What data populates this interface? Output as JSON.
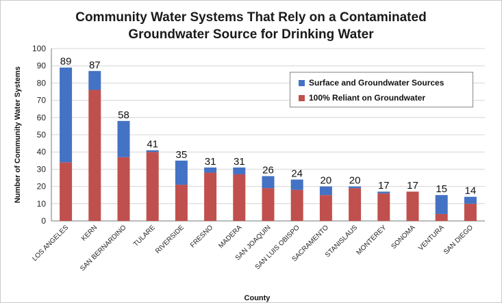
{
  "chart_data": {
    "type": "bar",
    "stacked": true,
    "title": "Community Water Systems That Rely on a Contaminated Groundwater Source for Drinking Water",
    "title_lines": [
      "Community Water Systems That Rely on a Contaminated",
      "Groundwater Source for Drinking Water"
    ],
    "xlabel": "County",
    "ylabel": "Number of Community Water Systems",
    "ylim": [
      0,
      100
    ],
    "yticks": [
      0,
      10,
      20,
      30,
      40,
      50,
      60,
      70,
      80,
      90,
      100
    ],
    "grid": true,
    "legend_position": "top-right",
    "categories": [
      "LOS ANGELES",
      "KERN",
      "SAN BERNARDINO",
      "TULARE",
      "RIVERSIDE",
      "FRESNO",
      "MADERA",
      "SAN JOAQUIN",
      "SAN LUIS OBISPO",
      "SACRAMENTO",
      "STANISLAUS",
      "MONTEREY",
      "SONOMA",
      "VENTURA",
      "SAN DIEGO"
    ],
    "series": [
      {
        "name": "100% Reliant on Groundwater",
        "color": "#c0504d",
        "values": [
          34,
          76,
          37,
          40,
          21,
          28,
          27,
          19,
          18,
          15,
          19,
          16,
          17,
          4,
          10
        ]
      },
      {
        "name": "Surface and Groundwater Sources",
        "color": "#4472c4",
        "values": [
          55,
          11,
          21,
          1,
          14,
          3,
          4,
          7,
          6,
          5,
          1,
          1,
          0,
          11,
          4
        ]
      }
    ],
    "totals": [
      89,
      87,
      58,
      41,
      35,
      31,
      31,
      26,
      24,
      20,
      20,
      17,
      17,
      15,
      14
    ],
    "legend_entries": [
      "Surface and Groundwater Sources",
      "100% Reliant on Groundwater"
    ]
  }
}
